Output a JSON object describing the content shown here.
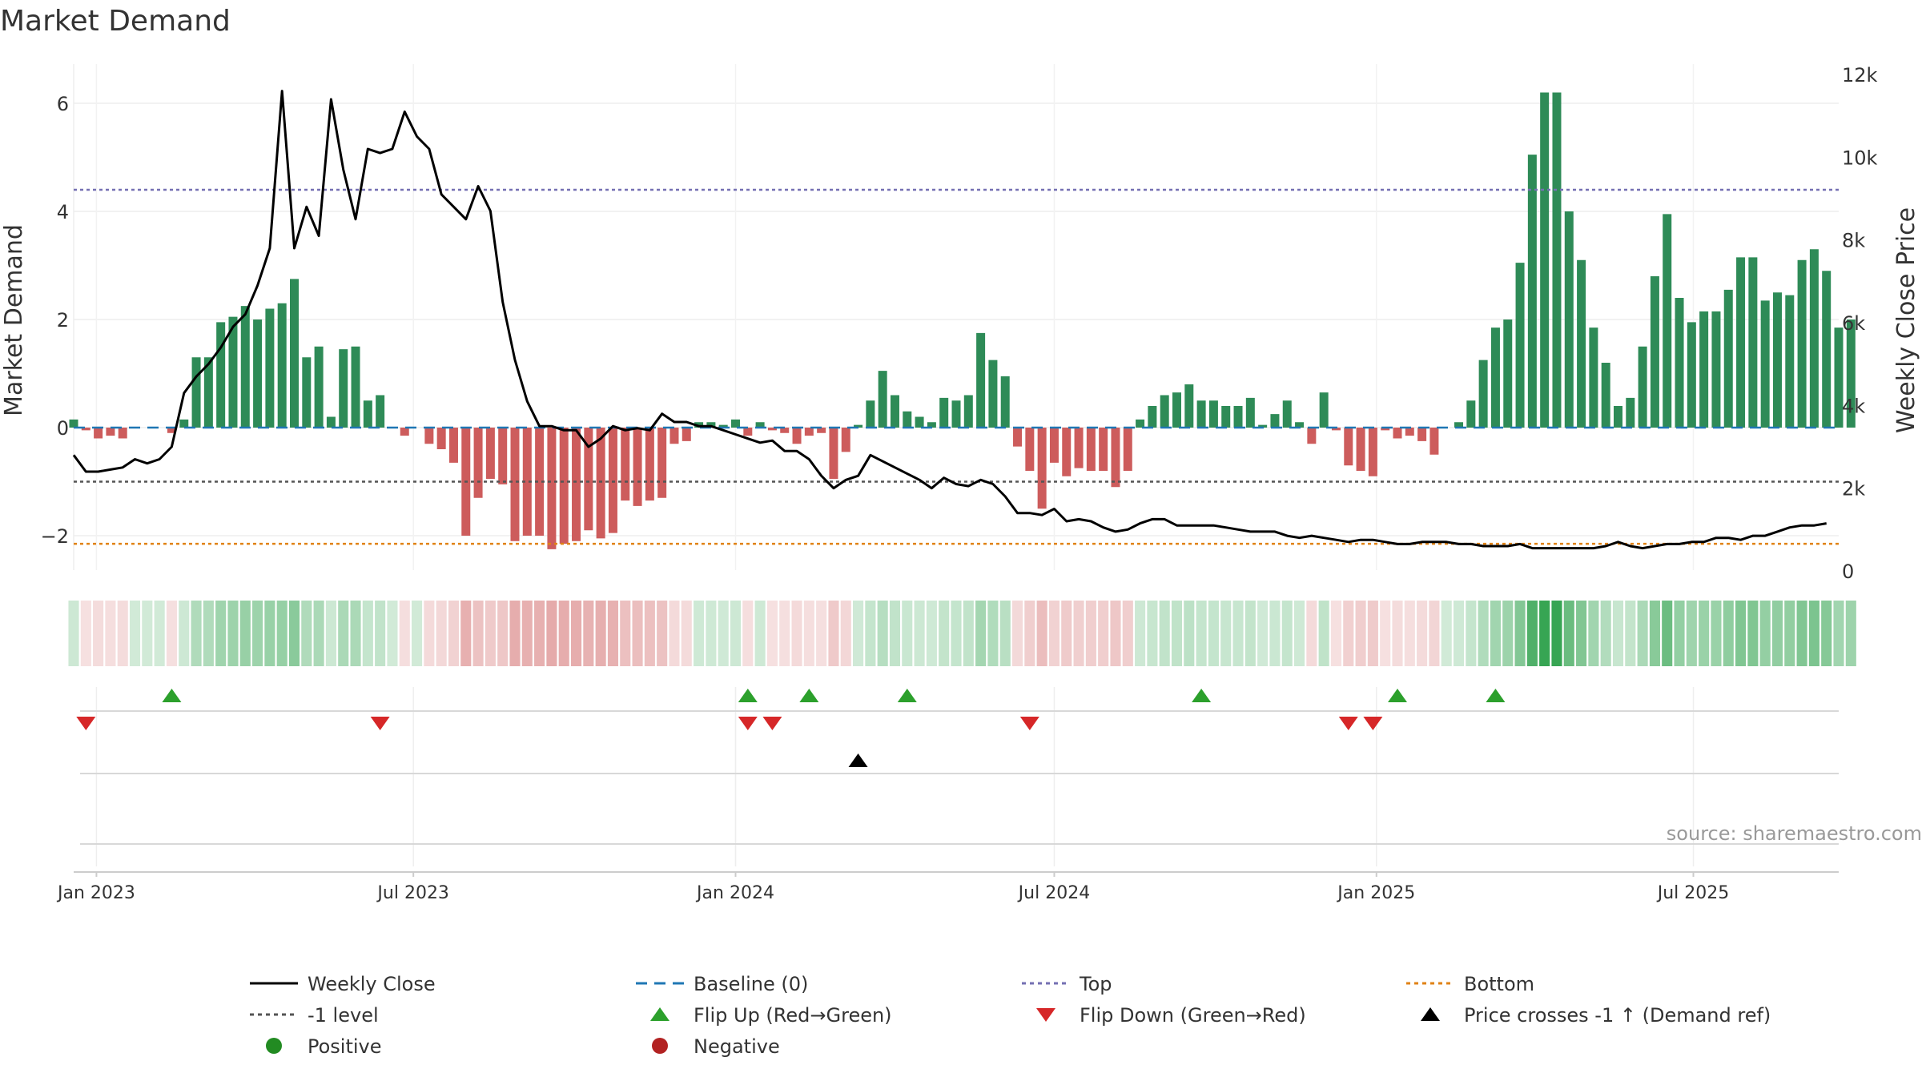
{
  "chart_data": {
    "type": "bar",
    "title": "Market Demand",
    "ylabel": "Market Demand",
    "y2label": "Weekly Close Price",
    "ylim": [
      -2.5,
      6.6
    ],
    "y2lim": [
      0,
      12000
    ],
    "yticks": [
      {
        "v": -2,
        "label": "−2"
      },
      {
        "v": 0,
        "label": "0"
      },
      {
        "v": 2,
        "label": "2"
      },
      {
        "v": 4,
        "label": "4"
      },
      {
        "v": 6,
        "label": "6"
      }
    ],
    "y2ticks": [
      {
        "v": 0,
        "label": "0"
      },
      {
        "v": 2000,
        "label": "2k"
      },
      {
        "v": 4000,
        "label": "4k"
      },
      {
        "v": 6000,
        "label": "6k"
      },
      {
        "v": 8000,
        "label": "8k"
      },
      {
        "v": 10000,
        "label": "10k"
      },
      {
        "v": 12000,
        "label": "12k"
      }
    ],
    "x_start": "2022-12-19",
    "x_end": "2025-09-22",
    "xticks": [
      {
        "date": "2023-01-01",
        "label": "Jan 2023"
      },
      {
        "date": "2023-07-01",
        "label": "Jul 2023"
      },
      {
        "date": "2024-01-01",
        "label": "Jan 2024"
      },
      {
        "date": "2024-07-01",
        "label": "Jul 2024"
      },
      {
        "date": "2025-01-01",
        "label": "Jan 2025"
      },
      {
        "date": "2025-07-01",
        "label": "Jul 2025"
      }
    ],
    "bar_series": {
      "name": "Market Demand",
      "start_date": "2022-12-19",
      "interval": "weekly",
      "values": [
        0.15,
        -0.05,
        -0.2,
        -0.15,
        -0.2,
        0,
        0,
        0,
        -0.1,
        0.15,
        1.3,
        1.3,
        1.95,
        2.05,
        2.25,
        2.0,
        2.2,
        2.3,
        2.75,
        1.3,
        1.5,
        0.2,
        1.45,
        1.5,
        0.5,
        0.6,
        0,
        -0.15,
        0,
        -0.3,
        -0.4,
        -0.65,
        -2.0,
        -1.3,
        -0.95,
        -1.05,
        -2.1,
        -2.0,
        -2.0,
        -2.25,
        -2.15,
        -2.1,
        -1.9,
        -2.05,
        -1.95,
        -1.35,
        -1.45,
        -1.35,
        -1.3,
        -0.3,
        -0.25,
        0.1,
        0.1,
        0.05,
        0.15,
        -0.15,
        0.1,
        -0.05,
        -0.1,
        -0.3,
        -0.15,
        -0.1,
        -0.95,
        -0.45,
        0.05,
        0.5,
        1.05,
        0.6,
        0.3,
        0.2,
        0.1,
        0.55,
        0.5,
        0.6,
        1.75,
        1.25,
        0.95,
        -0.35,
        -0.8,
        -1.5,
        -0.65,
        -0.9,
        -0.75,
        -0.8,
        -0.8,
        -1.1,
        -0.8,
        0.15,
        0.4,
        0.6,
        0.65,
        0.8,
        0.5,
        0.5,
        0.4,
        0.4,
        0.55,
        0.05,
        0.25,
        0.5,
        0.1,
        -0.3,
        0.65,
        -0.05,
        -0.7,
        -0.8,
        -0.9,
        -0.05,
        -0.2,
        -0.15,
        -0.25,
        -0.5,
        0.0,
        0.1,
        0.5,
        1.25,
        1.85,
        2.0,
        3.05,
        5.05,
        6.2,
        6.2,
        4.0,
        3.1,
        1.85,
        1.2,
        0.4,
        0.55,
        1.5,
        2.8,
        3.95,
        2.4,
        1.95,
        2.15,
        2.15,
        2.55,
        3.15,
        3.15,
        2.35,
        2.5,
        2.45,
        3.1,
        3.3,
        2.9,
        1.85,
        2.0
      ]
    },
    "line_series": {
      "name": "Weekly Close",
      "values": [
        2800,
        2400,
        2400,
        2450,
        2500,
        2700,
        2600,
        2700,
        3000,
        4300,
        4700,
        5000,
        5400,
        5900,
        6200,
        6900,
        7800,
        11600,
        7800,
        8800,
        8100,
        11400,
        9700,
        8500,
        10200,
        10100,
        10200,
        11100,
        10500,
        10200,
        9100,
        8800,
        8500,
        9300,
        8700,
        6500,
        5100,
        4100,
        3500,
        3500,
        3400,
        3400,
        3000,
        3200,
        3500,
        3400,
        3450,
        3400,
        3800,
        3600,
        3600,
        3500,
        3500,
        3400,
        3300,
        3200,
        3100,
        3150,
        2900,
        2900,
        2700,
        2300,
        2000,
        2200,
        2300,
        2800,
        2650,
        2500,
        2350,
        2200,
        2000,
        2250,
        2100,
        2050,
        2200,
        2100,
        1800,
        1400,
        1400,
        1350,
        1500,
        1200,
        1250,
        1200,
        1050,
        950,
        1000,
        1150,
        1250,
        1250,
        1100,
        1100,
        1100,
        1100,
        1050,
        1000,
        950,
        950,
        950,
        850,
        800,
        850,
        800,
        750,
        700,
        750,
        750,
        700,
        650,
        650,
        700,
        700,
        700,
        650,
        650,
        600,
        600,
        600,
        650,
        550,
        550,
        550,
        550,
        550,
        550,
        600,
        700,
        600,
        550,
        600,
        650,
        650,
        700,
        700,
        800,
        800,
        750,
        850,
        850,
        950,
        1050,
        1100,
        1100,
        1150
      ]
    },
    "bars_color": {
      "positive": "#2e8b57",
      "negative": "#cd5c5c"
    },
    "reference_lines": [
      {
        "name": "Baseline (0)",
        "value": 0,
        "color": "#1f77b4"
      },
      {
        "name": "-1 level",
        "value": -1,
        "color": "#555555"
      },
      {
        "name": "Top",
        "value": 4.4,
        "color": "#7570b3"
      },
      {
        "name": "Bottom",
        "value": -2.15,
        "color": "#e08214"
      }
    ],
    "flip_up_weeks": [
      8,
      55,
      60,
      68,
      92,
      108,
      116
    ],
    "flip_down_weeks": [
      1,
      25,
      55,
      57,
      78,
      104,
      106
    ],
    "price_cross_weeks": [
      64
    ],
    "source": "source: sharemaestro.com",
    "legend": [
      {
        "key": "weekly_close",
        "label": "Weekly Close",
        "symbol": "line",
        "color": "#000000"
      },
      {
        "key": "baseline",
        "label": "Baseline (0)",
        "symbol": "dash",
        "color": "#1f77b4"
      },
      {
        "key": "top",
        "label": "Top",
        "symbol": "dot",
        "color": "#7570b3"
      },
      {
        "key": "bottom",
        "label": "Bottom",
        "symbol": "dot",
        "color": "#e08214"
      },
      {
        "key": "minus_one",
        "label": "-1 level",
        "symbol": "dot",
        "color": "#555555"
      },
      {
        "key": "flip_up",
        "label": "Flip Up (Red→Green)",
        "symbol": "tri-up",
        "color": "#2ca02c"
      },
      {
        "key": "flip_down",
        "label": "Flip Down (Green→Red)",
        "symbol": "tri-down",
        "color": "#d62728"
      },
      {
        "key": "price_cross",
        "label": "Price crosses -1 ↑ (Demand ref)",
        "symbol": "tri-up",
        "color": "#000000"
      },
      {
        "key": "positive",
        "label": "Positive",
        "symbol": "circle",
        "color": "#228b22"
      },
      {
        "key": "negative",
        "label": "Negative",
        "symbol": "circle",
        "color": "#b22222"
      }
    ]
  }
}
